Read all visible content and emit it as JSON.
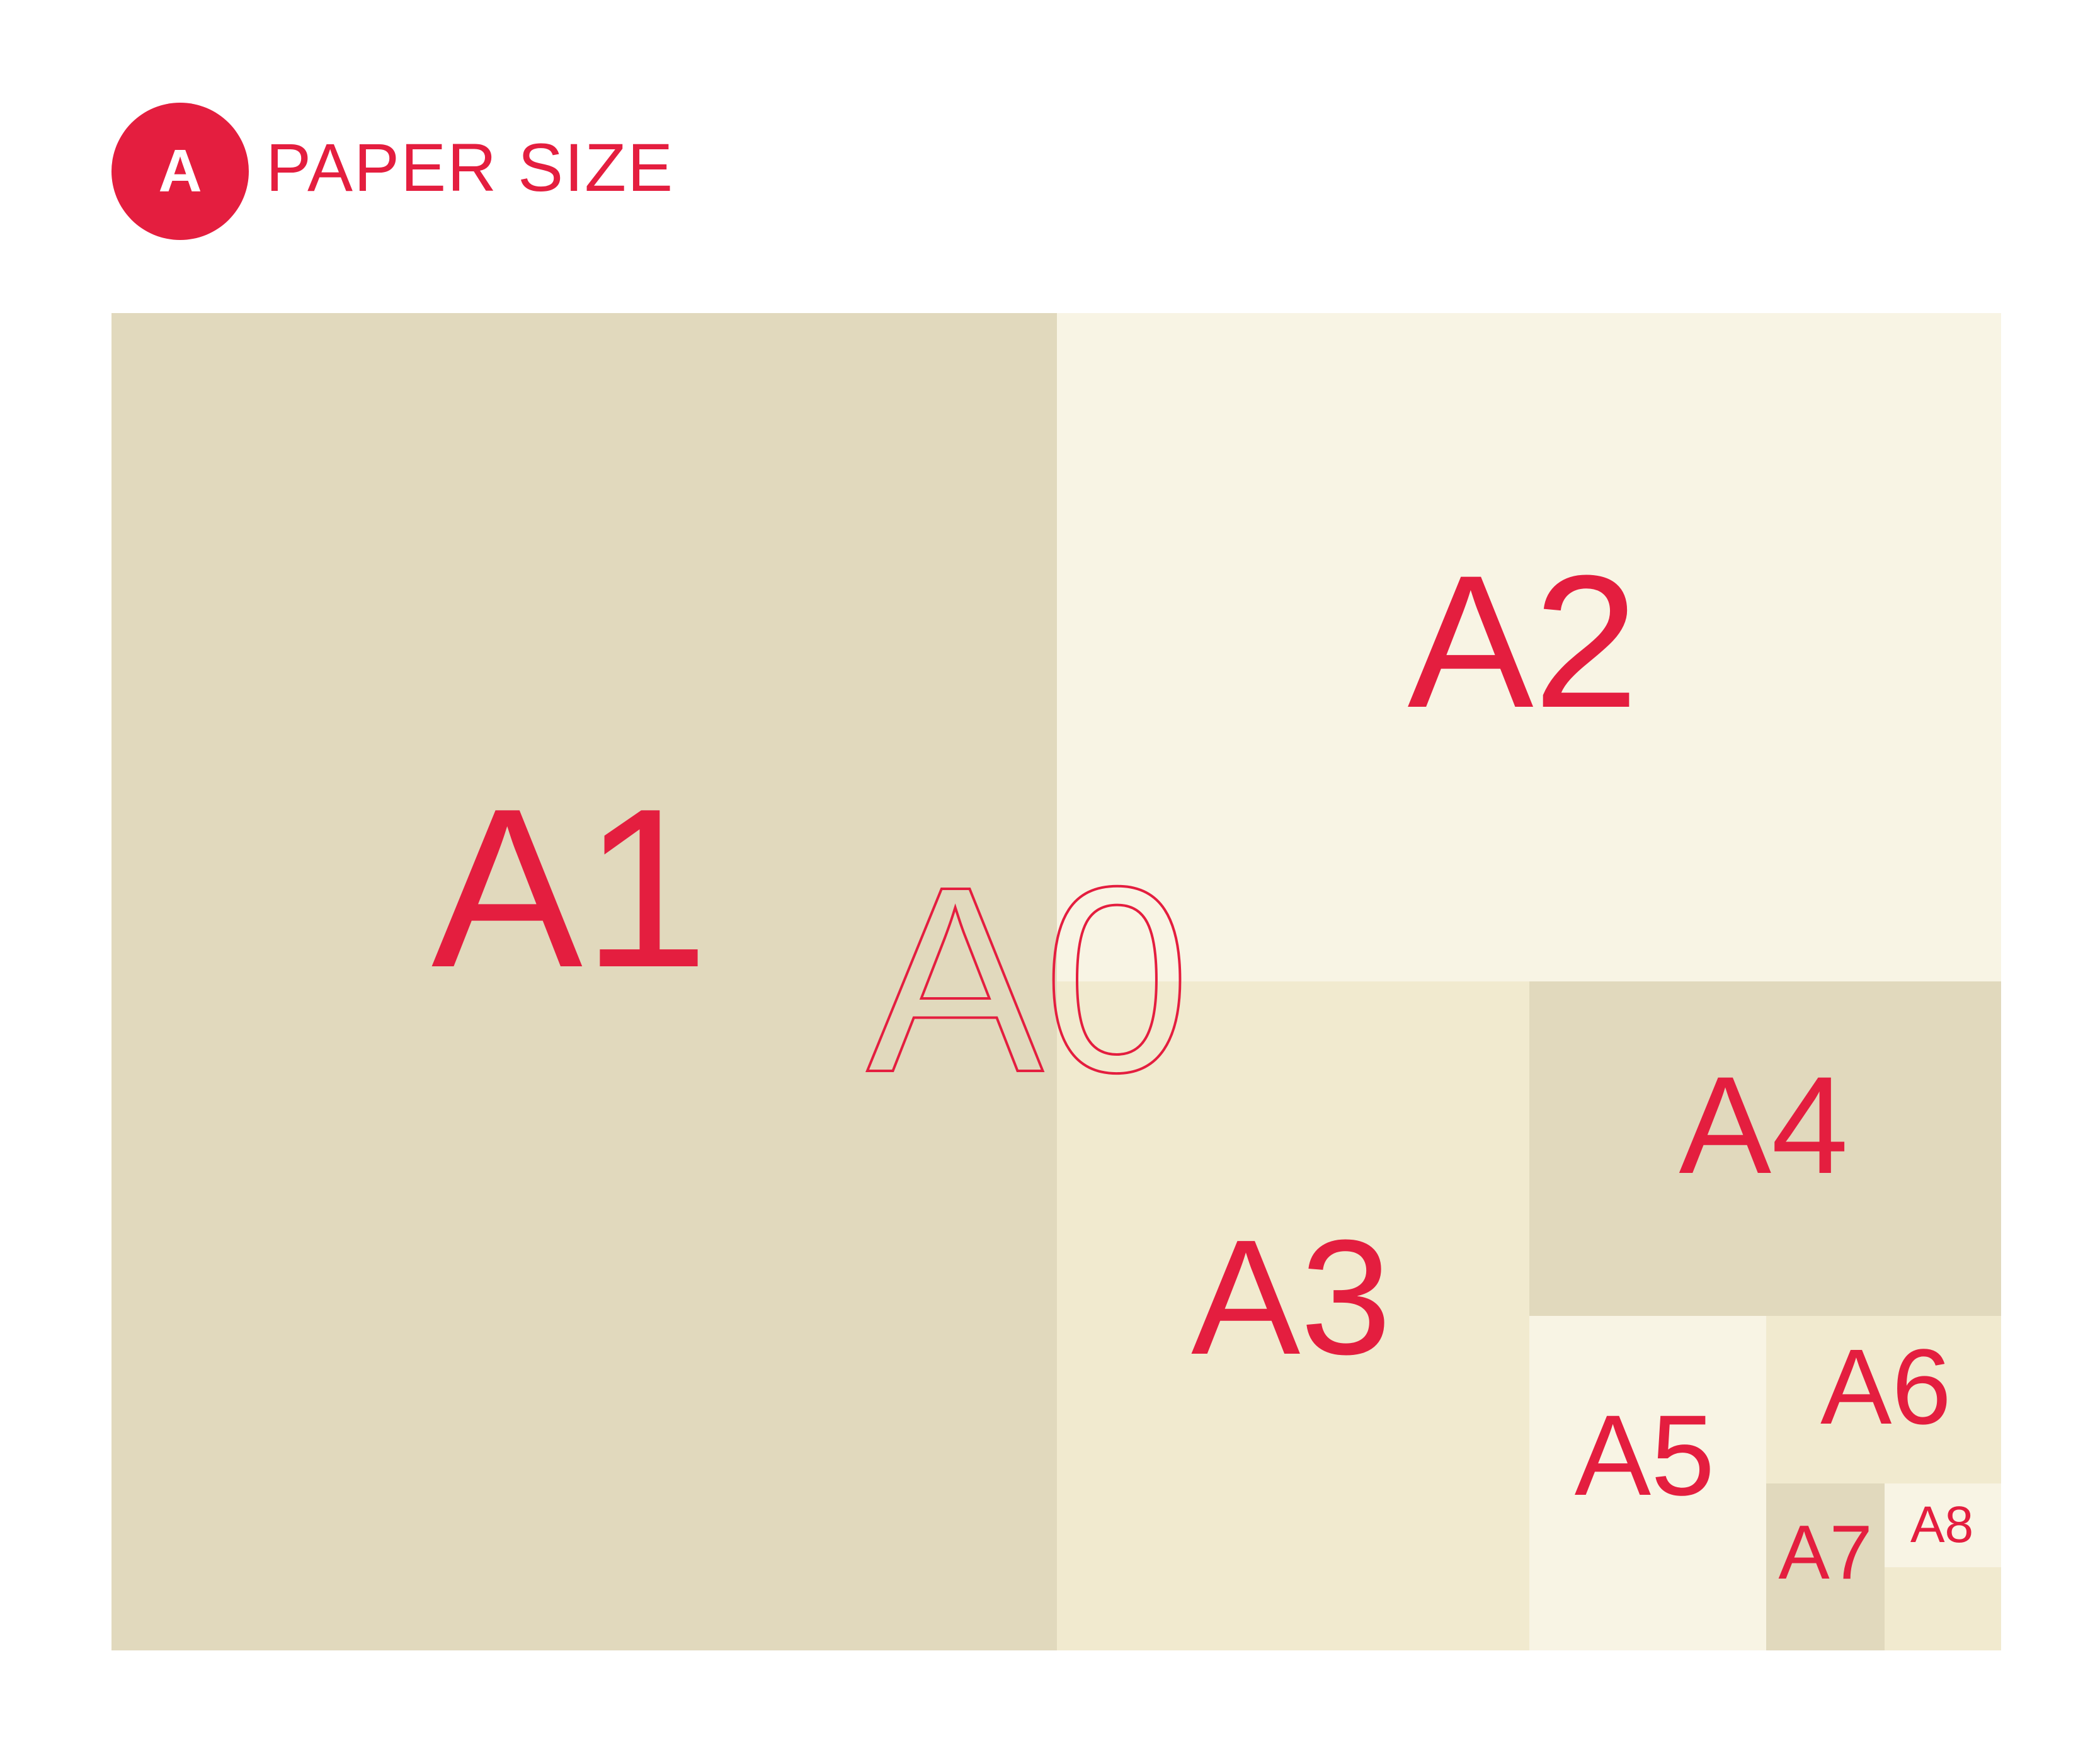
{
  "header": {
    "logo_letter": "A",
    "title": "PAPER SIZE"
  },
  "colors": {
    "accent": "#e41e3f",
    "sheet_dark": "#e1d9bd",
    "sheet_medium": "#f1eacf",
    "sheet_light": "#f8f4e4"
  },
  "diagram": {
    "outline_label": "A0",
    "sheets": [
      {
        "id": "a1",
        "label": "A1"
      },
      {
        "id": "a2",
        "label": "A2"
      },
      {
        "id": "a3",
        "label": "A3"
      },
      {
        "id": "a4",
        "label": "A4"
      },
      {
        "id": "a5",
        "label": "A5"
      },
      {
        "id": "a6",
        "label": "A6"
      },
      {
        "id": "a7",
        "label": "A7"
      },
      {
        "id": "a8",
        "label": "A8"
      }
    ]
  }
}
